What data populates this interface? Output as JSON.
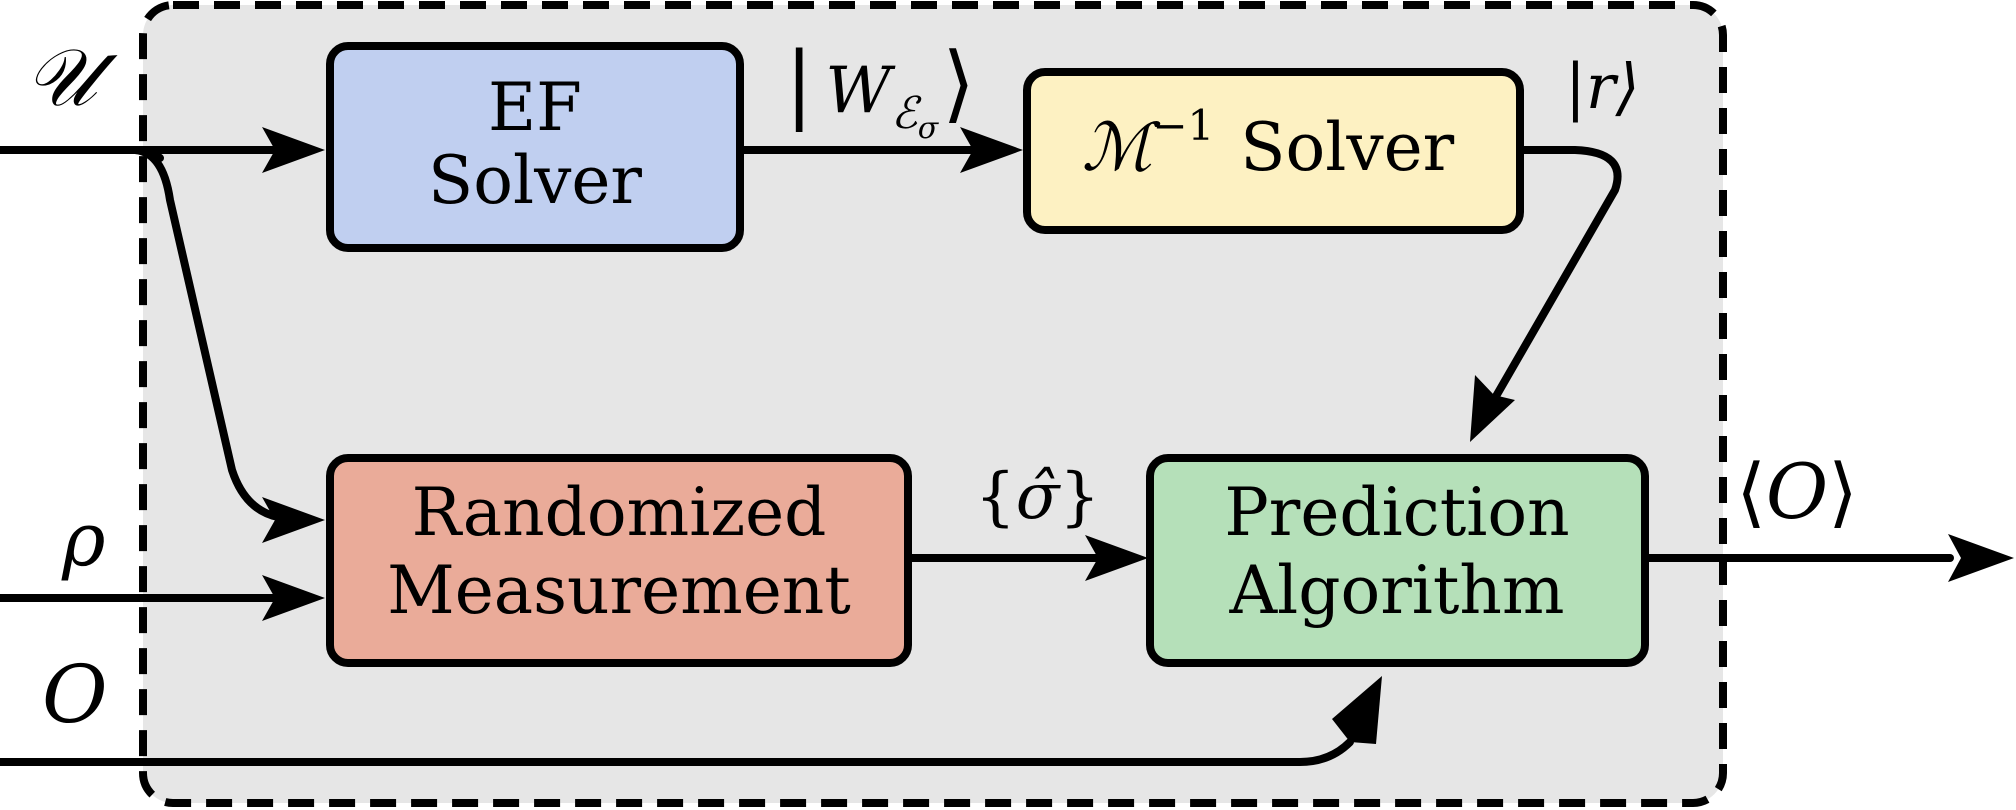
{
  "colors": {
    "frame_fill": "#e6e6e6",
    "ef_solver": "#c0cff0",
    "m_solver": "#fdf1c2",
    "randomized": "#eaab99",
    "prediction": "#b5e0b9"
  },
  "inputs": {
    "unitary": "𝒰",
    "state": "ρ",
    "observable": "O"
  },
  "boxes": {
    "ef_solver": {
      "line1": "EF",
      "line2": "Solver"
    },
    "m_solver": {
      "m": "ℳ",
      "exp": "−1",
      "solver": "Solver"
    },
    "randomized": {
      "line1": "Randomized",
      "line2": "Measurement"
    },
    "prediction": {
      "line1": "Prediction",
      "line2": "Algorithm"
    }
  },
  "edges": {
    "w_left": "|",
    "w_main": "W",
    "w_sub": "ℰ",
    "w_subsub": "σ",
    "w_right": "⟩",
    "r_label": "|r⟩",
    "sigma_open": "{",
    "sigma_hat": "σ̂",
    "sigma_close": "}",
    "output_open": "⟨",
    "output_main": "O",
    "output_close": "⟩"
  }
}
